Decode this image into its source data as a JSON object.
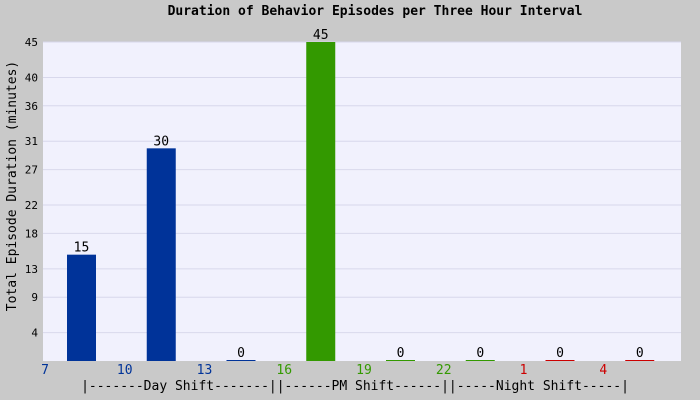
{
  "colors": {
    "background": "#c9c9c9",
    "plot_bg": "#f1f1fd",
    "grid": "#d8d8ec",
    "day": "#003399",
    "pm": "#339900",
    "night": "#cc0000",
    "text": "#000000"
  },
  "chart_data": {
    "type": "bar",
    "title": "Duration of Behavior Episodes per Three Hour Interval",
    "ylabel": "Total Episode Duration (minutes)",
    "xlabel": "|-------Day Shift-------||------PM Shift------||-----Night Shift-----|",
    "ylim": [
      0,
      45
    ],
    "yticks": [
      "4",
      "9",
      "13",
      "18",
      "22",
      "27",
      "31",
      "36",
      "40",
      "45"
    ],
    "grid": true,
    "categories": [
      "7",
      "10",
      "13",
      "16",
      "19",
      "22",
      "1",
      "4"
    ],
    "values": [
      15,
      30,
      0,
      45,
      0,
      0,
      0,
      0
    ],
    "shifts": [
      "day",
      "day",
      "day",
      "pm",
      "pm",
      "pm",
      "night",
      "night"
    ]
  }
}
